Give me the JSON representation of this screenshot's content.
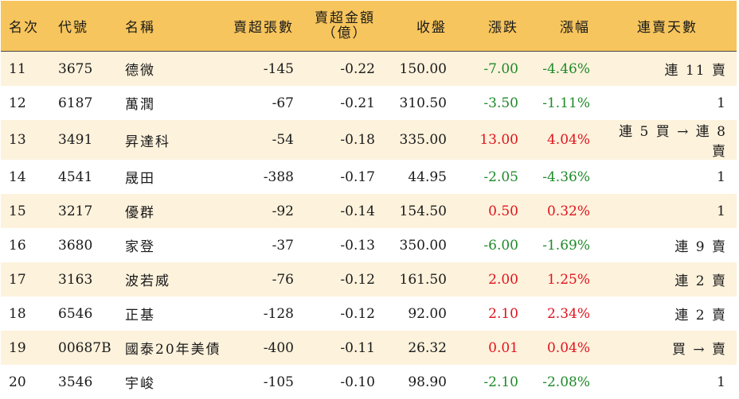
{
  "headers": {
    "rank": "名次",
    "code": "代號",
    "name": "名稱",
    "lots": "賣超張數",
    "amount_line1": "賣超金額",
    "amount_line2": "（億）",
    "close": "收盤",
    "change": "漲跌",
    "pct": "漲幅",
    "streak": "連賣天數"
  },
  "colors": {
    "header_bg": "#f7c55d",
    "stripe_bg": "#fdf2dc",
    "up": "#e0141e",
    "down": "#1f8a2a"
  },
  "rows": [
    {
      "rank": "11",
      "code": "3675",
      "name": "德微",
      "lots": "-145",
      "amount": "-0.22",
      "close": "150.00",
      "change": "-7.00",
      "pct": "-4.46%",
      "streak": "連 11 賣",
      "dir": "down"
    },
    {
      "rank": "12",
      "code": "6187",
      "name": "萬潤",
      "lots": "-67",
      "amount": "-0.21",
      "close": "310.50",
      "change": "-3.50",
      "pct": "-1.11%",
      "streak": "1",
      "dir": "down"
    },
    {
      "rank": "13",
      "code": "3491",
      "name": "昇達科",
      "lots": "-54",
      "amount": "-0.18",
      "close": "335.00",
      "change": "13.00",
      "pct": "4.04%",
      "streak": "連 5 買 → 連 8 賣",
      "dir": "up"
    },
    {
      "rank": "14",
      "code": "4541",
      "name": "晟田",
      "lots": "-388",
      "amount": "-0.17",
      "close": "44.95",
      "change": "-2.05",
      "pct": "-4.36%",
      "streak": "1",
      "dir": "down"
    },
    {
      "rank": "15",
      "code": "3217",
      "name": "優群",
      "lots": "-92",
      "amount": "-0.14",
      "close": "154.50",
      "change": "0.50",
      "pct": "0.32%",
      "streak": "1",
      "dir": "up"
    },
    {
      "rank": "16",
      "code": "3680",
      "name": "家登",
      "lots": "-37",
      "amount": "-0.13",
      "close": "350.00",
      "change": "-6.00",
      "pct": "-1.69%",
      "streak": "連 9 賣",
      "dir": "down"
    },
    {
      "rank": "17",
      "code": "3163",
      "name": "波若威",
      "lots": "-76",
      "amount": "-0.12",
      "close": "161.50",
      "change": "2.00",
      "pct": "1.25%",
      "streak": "連 2 賣",
      "dir": "up"
    },
    {
      "rank": "18",
      "code": "6546",
      "name": "正基",
      "lots": "-128",
      "amount": "-0.12",
      "close": "92.00",
      "change": "2.10",
      "pct": "2.34%",
      "streak": "連 2 賣",
      "dir": "up"
    },
    {
      "rank": "19",
      "code": "00687B",
      "name": "國泰20年美債",
      "lots": "-400",
      "amount": "-0.11",
      "close": "26.32",
      "change": "0.01",
      "pct": "0.04%",
      "streak": "買 → 賣",
      "dir": "up"
    },
    {
      "rank": "20",
      "code": "3546",
      "name": "宇峻",
      "lots": "-105",
      "amount": "-0.10",
      "close": "98.90",
      "change": "-2.10",
      "pct": "-2.08%",
      "streak": "1",
      "dir": "down"
    }
  ]
}
